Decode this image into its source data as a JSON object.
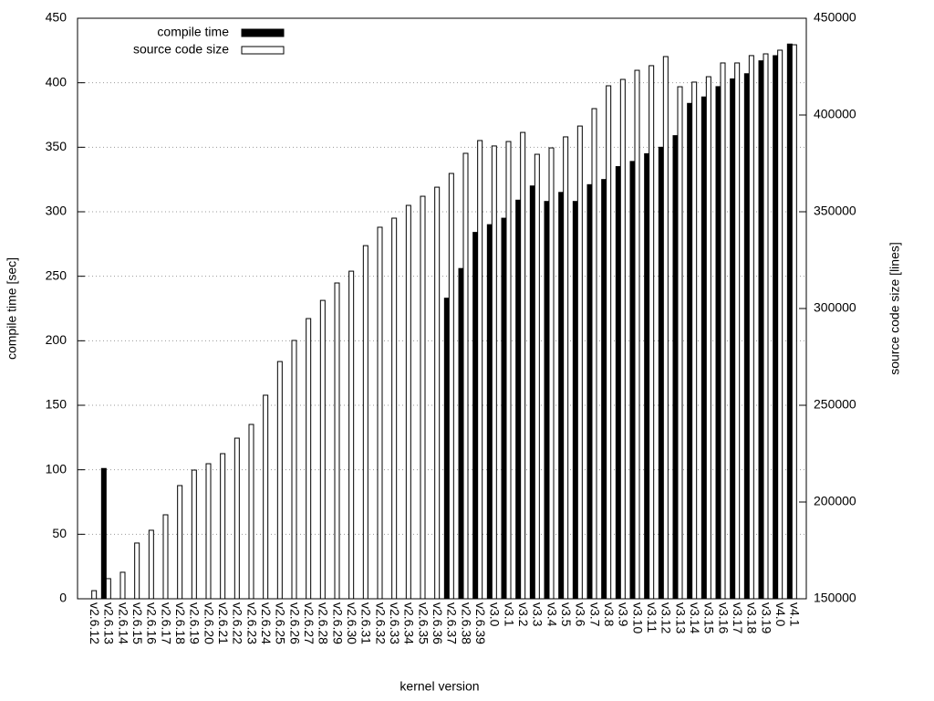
{
  "chart_data": {
    "type": "bar",
    "xlabel": "kernel version",
    "ylabel": "compile time [sec]",
    "y2label": "source code size [lines]",
    "categories": [
      "v2.6.12",
      "v2.6.13",
      "v2.6.14",
      "v2.6.15",
      "v2.6.16",
      "v2.6.17",
      "v2.6.18",
      "v2.6.19",
      "v2.6.20",
      "v2.6.21",
      "v2.6.22",
      "v2.6.23",
      "v2.6.24",
      "v2.6.25",
      "v2.6.26",
      "v2.6.27",
      "v2.6.28",
      "v2.6.29",
      "v2.6.30",
      "v2.6.31",
      "v2.6.32",
      "v2.6.33",
      "v2.6.34",
      "v2.6.35",
      "v2.6.36",
      "v2.6.37",
      "v2.6.38",
      "v2.6.39",
      "v3.0",
      "v3.1",
      "v3.2",
      "v3.3",
      "v3.4",
      "v3.5",
      "v3.6",
      "v3.7",
      "v3.8",
      "v3.9",
      "v3.10",
      "v3.11",
      "v3.12",
      "v3.13",
      "v3.14",
      "v3.15",
      "v3.16",
      "v3.17",
      "v3.18",
      "v3.19",
      "v4.0",
      "v4.1"
    ],
    "series": [
      {
        "name": "compile time",
        "color": "#000000",
        "values": [
          null,
          101,
          null,
          null,
          null,
          null,
          null,
          null,
          null,
          null,
          null,
          null,
          null,
          null,
          null,
          null,
          null,
          null,
          null,
          null,
          null,
          null,
          null,
          null,
          null,
          233,
          256,
          284,
          290,
          295,
          309,
          320,
          308,
          315,
          308,
          321,
          325,
          335,
          339,
          345,
          350,
          359,
          384,
          389,
          397,
          403,
          407,
          417,
          421,
          430
        ]
      },
      {
        "name": "source code size",
        "color": "#ffffff",
        "axis": "y2",
        "values": [
          154200,
          160400,
          163700,
          178800,
          185400,
          193400,
          208500,
          216500,
          219800,
          225000,
          233000,
          240100,
          255200,
          272600,
          283500,
          294800,
          304200,
          313200,
          319300,
          332500,
          342000,
          346700,
          353300,
          358000,
          362700,
          369800,
          380200,
          386800,
          384000,
          386300,
          391000,
          379700,
          383000,
          388700,
          394300,
          403300,
          415100,
          418400,
          423100,
          425500,
          430200,
          414600,
          417000,
          419800,
          426900,
          426900,
          430700,
          431600,
          433500,
          436300
        ]
      }
    ],
    "ylim": [
      0,
      450
    ],
    "yticks": [
      0,
      50,
      100,
      150,
      200,
      250,
      300,
      350,
      400,
      450
    ],
    "y2lim": [
      150000,
      450000
    ],
    "y2ticks": [
      150000,
      200000,
      250000,
      300000,
      350000,
      400000,
      450000
    ],
    "grid": true,
    "legend": "top-left"
  }
}
